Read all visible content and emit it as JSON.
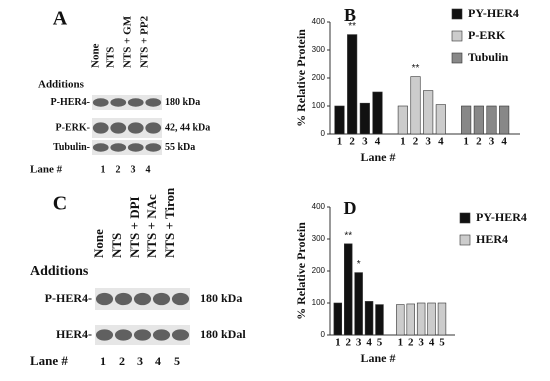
{
  "panel_a": {
    "letter": "A",
    "columns": [
      "None",
      "NTS",
      "NTS + GM",
      "NTS + PP2"
    ],
    "additions": "Additions",
    "rows": [
      {
        "label": "P-HER4-",
        "size": "180 kDa"
      },
      {
        "label": "P-ERK-",
        "size": "42, 44 kDa"
      },
      {
        "label": "Tubulin-",
        "size": "55 kDa"
      }
    ],
    "lane_title": "Lane #",
    "lanes": [
      "1",
      "2",
      "3",
      "4"
    ]
  },
  "panel_c": {
    "letter": "C",
    "columns": [
      "None",
      "NTS",
      "NTS + DPI",
      "NTS + NAc",
      "NTS + Tiron"
    ],
    "additions": "Additions",
    "rows": [
      {
        "label": "P-HER4-",
        "size": "180 kDa"
      },
      {
        "label": "HER4-",
        "size": "180 kDal"
      }
    ],
    "lane_title": "Lane #",
    "lanes": [
      "1",
      "2",
      "3",
      "4",
      "5"
    ]
  },
  "chart_data": [
    {
      "type": "bar",
      "panel_label": "B",
      "y_label": "% Relative Protein",
      "x_label": "Lane #",
      "categories": [
        "1",
        "2",
        "3",
        "4"
      ],
      "ylim": [
        0,
        400
      ],
      "yticks": [
        0,
        100,
        200,
        300,
        400
      ],
      "series": [
        {
          "name": "PY-HER4",
          "color": "#111111",
          "values": [
            100,
            355,
            110,
            150
          ],
          "annotations": [
            null,
            "**",
            null,
            null
          ]
        },
        {
          "name": "P-ERK",
          "color": "#cccccc",
          "values": [
            100,
            205,
            155,
            105
          ],
          "annotations": [
            null,
            "**",
            null,
            null
          ]
        },
        {
          "name": "Tubulin",
          "color": "#888888",
          "values": [
            100,
            100,
            100,
            100
          ],
          "annotations": [
            null,
            null,
            null,
            null
          ]
        }
      ]
    },
    {
      "type": "bar",
      "panel_label": "D",
      "y_label": "% Relative Protein",
      "x_label": "Lane #",
      "categories": [
        "1",
        "2",
        "3",
        "4",
        "5"
      ],
      "ylim": [
        0,
        400
      ],
      "yticks": [
        0,
        100,
        200,
        300,
        400
      ],
      "series": [
        {
          "name": "PY-HER4",
          "color": "#111111",
          "values": [
            100,
            285,
            195,
            105,
            95
          ],
          "annotations": [
            null,
            "**",
            "*",
            null,
            null
          ]
        },
        {
          "name": "HER4",
          "color": "#cccccc",
          "values": [
            95,
            97,
            100,
            100,
            100
          ],
          "annotations": [
            null,
            null,
            null,
            null,
            null
          ]
        }
      ]
    }
  ]
}
